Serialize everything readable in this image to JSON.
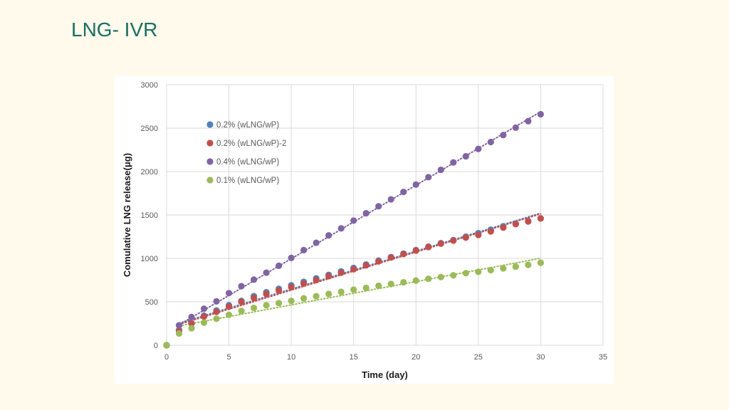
{
  "slide": {
    "title": "LNG- IVR"
  },
  "chart_data": {
    "type": "scatter",
    "title": "",
    "xlabel": "Time (day)",
    "ylabel": "Comulative LNG release(μg)",
    "xlim": [
      0,
      35
    ],
    "ylim": [
      0,
      3000
    ],
    "x_ticks": [
      0,
      5,
      10,
      15,
      20,
      25,
      30,
      35
    ],
    "y_ticks": [
      0,
      500,
      1000,
      1500,
      2000,
      2500,
      3000
    ],
    "grid": true,
    "legend_position": "top-left",
    "trendlines": "dotted linear",
    "series": [
      {
        "name": "0.2% (wLNG/wP)",
        "color": "#4f81bd",
        "x": [
          0,
          1,
          2,
          3,
          4,
          5,
          6,
          7,
          8,
          9,
          10,
          11,
          12,
          13,
          14,
          15,
          16,
          17,
          18,
          19,
          20,
          21,
          22,
          23,
          24,
          25,
          26,
          27,
          28,
          29,
          30
        ],
        "y": [
          0,
          175,
          255,
          340,
          400,
          460,
          510,
          565,
          610,
          650,
          690,
          730,
          770,
          810,
          850,
          890,
          930,
          975,
          1015,
          1055,
          1095,
          1135,
          1175,
          1210,
          1250,
          1290,
          1330,
          1370,
          1400,
          1430,
          1460
        ]
      },
      {
        "name": "0.2% (wLNG/wP)-2",
        "color": "#c0504d",
        "x": [
          0,
          1,
          2,
          3,
          4,
          5,
          6,
          7,
          8,
          9,
          10,
          11,
          12,
          13,
          14,
          15,
          16,
          17,
          18,
          19,
          20,
          21,
          22,
          23,
          24,
          25,
          26,
          27,
          28,
          29,
          30
        ],
        "y": [
          0,
          165,
          250,
          330,
          385,
          445,
          500,
          545,
          590,
          630,
          670,
          710,
          750,
          795,
          835,
          875,
          920,
          965,
          1010,
          1050,
          1090,
          1130,
          1170,
          1205,
          1240,
          1270,
          1310,
          1355,
          1395,
          1425,
          1460
        ]
      },
      {
        "name": "0.4% (wLNG/wP)",
        "color": "#8064a2",
        "x": [
          0,
          1,
          2,
          3,
          4,
          5,
          6,
          7,
          8,
          9,
          10,
          11,
          12,
          13,
          14,
          15,
          16,
          17,
          18,
          19,
          20,
          21,
          22,
          23,
          24,
          25,
          26,
          27,
          28,
          29,
          30
        ],
        "y": [
          0,
          230,
          325,
          420,
          505,
          600,
          680,
          755,
          835,
          915,
          1005,
          1095,
          1180,
          1265,
          1345,
          1435,
          1520,
          1600,
          1680,
          1765,
          1850,
          1935,
          2020,
          2105,
          2175,
          2260,
          2340,
          2420,
          2505,
          2580,
          2660
        ]
      },
      {
        "name": "0.1% (wLNG/wP)",
        "color": "#9bbb59",
        "x": [
          0,
          1,
          2,
          3,
          4,
          5,
          6,
          7,
          8,
          9,
          10,
          11,
          12,
          13,
          14,
          15,
          16,
          17,
          18,
          19,
          20,
          21,
          22,
          23,
          24,
          25,
          26,
          27,
          28,
          29,
          30
        ],
        "y": [
          0,
          135,
          195,
          260,
          305,
          350,
          395,
          430,
          460,
          485,
          510,
          540,
          565,
          590,
          615,
          640,
          660,
          685,
          705,
          725,
          745,
          765,
          785,
          805,
          830,
          845,
          865,
          885,
          905,
          925,
          950
        ]
      }
    ]
  }
}
